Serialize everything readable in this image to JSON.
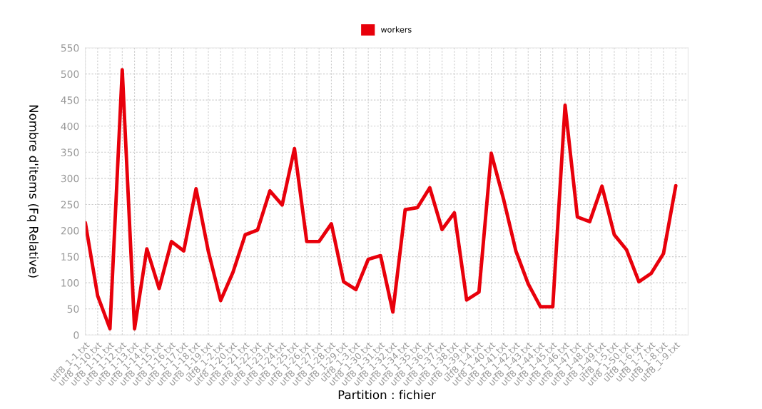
{
  "chart_data": {
    "type": "line",
    "xlabel": "Partition : fichier",
    "ylabel": "Nombre d'items (Fq Relative)",
    "categories": [
      "utf8_1-1.txt",
      "utf8_1-10.txt",
      "utf8_1-11.txt",
      "utf8_1-12.txt",
      "utf8_1-13.txt",
      "utf8_1-14.txt",
      "utf8_1-15.txt",
      "utf8_1-16.txt",
      "utf8_1-17.txt",
      "utf8_1-18.txt",
      "utf8_1-19.txt",
      "utf8_1-2.txt",
      "utf8_1-20.txt",
      "utf8_1-21.txt",
      "utf8_1-22.txt",
      "utf8_1-23.txt",
      "utf8_1-24.txt",
      "utf8_1-25.txt",
      "utf8_1-26.txt",
      "utf8_1-27.txt",
      "utf8_1-28.txt",
      "utf8_1-29.txt",
      "utf8_1-3.txt",
      "utf8_1-30.txt",
      "utf8_1-31.txt",
      "utf8_1-32.txt",
      "utf8_1-34.txt",
      "utf8_1-35.txt",
      "utf8_1-36.txt",
      "utf8_1-37.txt",
      "utf8_1-38.txt",
      "utf8_1-39.txt",
      "utf8_1-4.txt",
      "utf8_1-40.txt",
      "utf8_1-41.txt",
      "utf8_1-42.txt",
      "utf8_1-43.txt",
      "utf8_1-44.txt",
      "utf8_1-45.txt",
      "utf8_1-46.txt",
      "utf8_1-47.txt",
      "utf8_1-48.txt",
      "utf8_1-49.txt",
      "utf8_1-5.txt",
      "utf8_1-50.txt",
      "utf8_1-6.txt",
      "utf8_1-7.txt",
      "utf8_1-8.txt",
      "utf8_1-9.txt"
    ],
    "series": [
      {
        "name": "workers",
        "color": "#e8000b",
        "values": [
          215,
          75,
          12,
          508,
          12,
          165,
          89,
          179,
          161,
          280,
          160,
          66,
          120,
          192,
          201,
          276,
          249,
          357,
          179,
          179,
          213,
          102,
          87,
          145,
          152,
          44,
          240,
          244,
          282,
          202,
          234,
          67,
          82,
          348,
          260,
          161,
          98,
          54,
          54,
          440,
          226,
          217,
          285,
          192,
          163,
          102,
          118,
          156,
          286
        ]
      }
    ],
    "ylim": [
      0,
      550
    ],
    "yticks": [
      0,
      50,
      100,
      150,
      200,
      250,
      300,
      350,
      400,
      450,
      500,
      550
    ],
    "grid": true,
    "legend": "top",
    "marker": "none",
    "line_style": "solid"
  }
}
